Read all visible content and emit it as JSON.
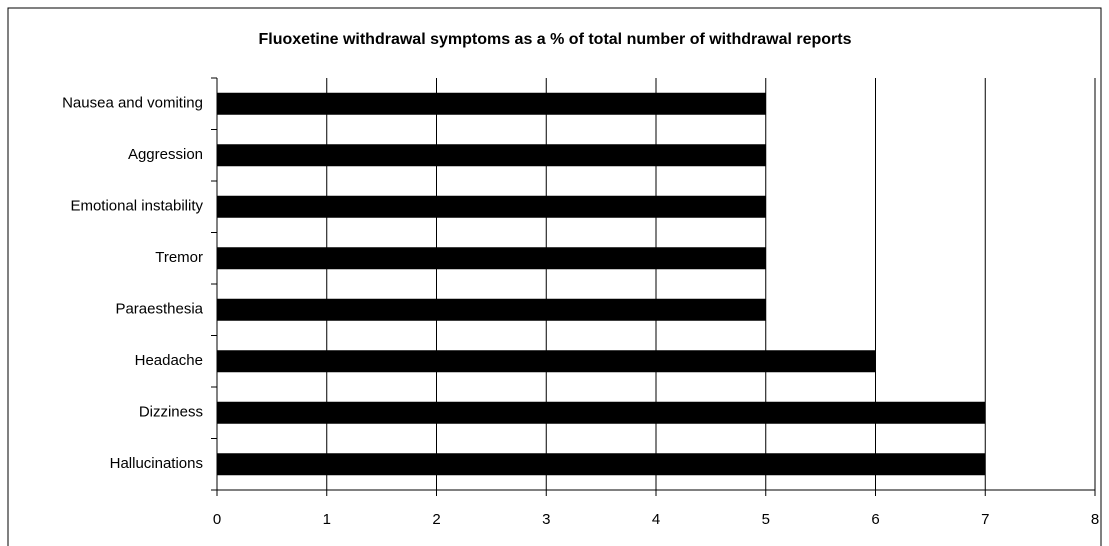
{
  "chart_data": {
    "type": "bar",
    "orientation": "horizontal",
    "title": "Fluoxetine  withdrawal symptoms as a % of total number of withdrawal reports",
    "categories": [
      "Nausea and vomiting",
      "Aggression",
      "Emotional instability",
      "Tremor",
      "Paraesthesia",
      "Headache",
      "Dizziness",
      "Hallucinations"
    ],
    "values": [
      5,
      5,
      5,
      5,
      5,
      6,
      7,
      7
    ],
    "color": "#000000",
    "xlim": [
      0,
      8
    ],
    "xticks": [
      0,
      1,
      2,
      3,
      4,
      5,
      6,
      7,
      8
    ],
    "grid": true
  }
}
